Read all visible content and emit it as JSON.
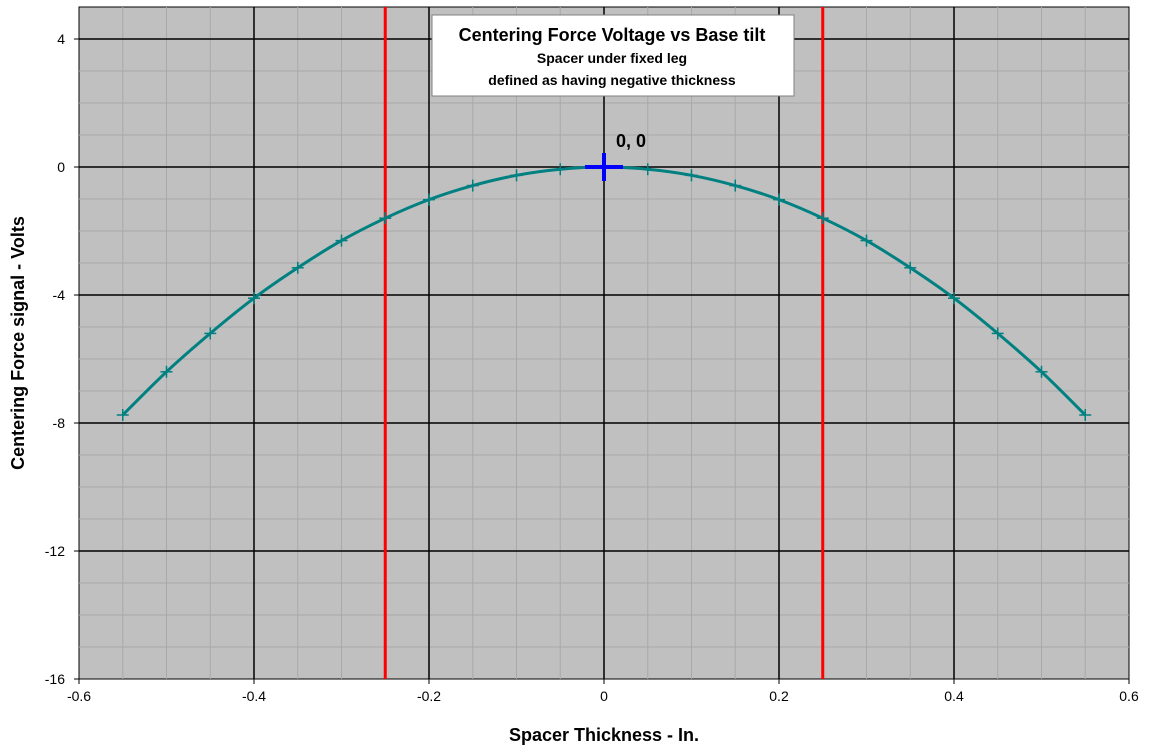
{
  "chart_data": {
    "type": "line",
    "title": "Centering Force Voltage vs Base tilt",
    "subtitle_lines": [
      "Spacer under fixed leg",
      "defined as having negative thickness"
    ],
    "xlabel": "Spacer Thickness - In.",
    "ylabel": "Centering Force signal - Volts",
    "xlim": [
      -0.6,
      0.6
    ],
    "ylim": [
      -16,
      5
    ],
    "x_ticks": [
      -0.6,
      -0.4,
      -0.2,
      0,
      0.2,
      0.4,
      0.6
    ],
    "x_tick_labels": [
      "-0.6",
      "-0.4",
      "-0.2",
      "0",
      "0.2",
      "0.4",
      "0.6"
    ],
    "y_ticks": [
      -16,
      -12,
      -8,
      -4,
      0,
      4
    ],
    "y_tick_labels": [
      "-16",
      "-12",
      "-8",
      "-4",
      "0",
      "4"
    ],
    "x_minor_step": 0.05,
    "y_minor_step": 1,
    "grid": true,
    "plot_background": "#c0c0c0",
    "series": [
      {
        "color": "#008080",
        "marker": "plus",
        "x": [
          -0.55,
          -0.5,
          -0.45,
          -0.4,
          -0.35,
          -0.3,
          -0.25,
          -0.2,
          -0.15,
          -0.1,
          -0.05,
          0,
          0.05,
          0.1,
          0.15,
          0.2,
          0.25,
          0.3,
          0.35,
          0.4,
          0.45,
          0.5,
          0.55
        ],
        "y": [
          -7.75,
          -6.4,
          -5.2,
          -4.1,
          -3.15,
          -2.3,
          -1.6,
          -1.02,
          -0.58,
          -0.26,
          -0.07,
          0,
          -0.07,
          -0.26,
          -0.58,
          -1.02,
          -1.6,
          -2.3,
          -3.15,
          -4.1,
          -5.2,
          -6.4,
          -7.75
        ]
      }
    ],
    "vertical_lines": [
      {
        "x": -0.25,
        "color": "#ff0000"
      },
      {
        "x": 0.25,
        "color": "#ff0000"
      }
    ],
    "highlight_point": {
      "x": 0,
      "y": 0,
      "color": "#0000ff",
      "label": "0, 0"
    }
  }
}
